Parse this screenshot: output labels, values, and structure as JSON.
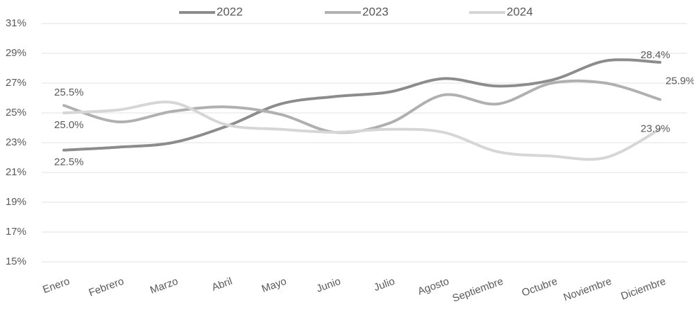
{
  "chart_data": {
    "type": "line",
    "categories": [
      "Enero",
      "Febrero",
      "Marzo",
      "Abril",
      "Mayo",
      "Junio",
      "Julio",
      "Agosto",
      "Septiembre",
      "Octubre",
      "Noviembre",
      "Diciembre"
    ],
    "series": [
      {
        "name": "2022",
        "color": "#8c8c8c",
        "values": [
          22.5,
          22.7,
          23.0,
          24.1,
          25.6,
          26.1,
          26.4,
          27.3,
          26.8,
          27.2,
          28.5,
          28.4
        ],
        "value_labels": [
          "22.5%",
          null,
          null,
          null,
          null,
          null,
          null,
          null,
          null,
          null,
          null,
          "28.4%"
        ]
      },
      {
        "name": "2023",
        "color": "#b0b0b0",
        "values": [
          25.5,
          24.4,
          25.1,
          25.4,
          24.9,
          23.7,
          24.3,
          26.2,
          25.6,
          27.0,
          27.0,
          25.9
        ],
        "value_labels": [
          "25.5%",
          null,
          null,
          null,
          null,
          null,
          null,
          null,
          null,
          null,
          null,
          "25.9%"
        ]
      },
      {
        "name": "2024",
        "color": "#d6d6d6",
        "values": [
          25.0,
          25.2,
          25.7,
          24.2,
          23.9,
          23.7,
          23.9,
          23.7,
          22.4,
          22.1,
          22.0,
          23.9
        ],
        "value_labels": [
          "25.0%",
          null,
          null,
          null,
          null,
          null,
          null,
          null,
          null,
          null,
          null,
          "23.9%"
        ]
      }
    ],
    "ylim": [
      15,
      31
    ],
    "yticks": [
      {
        "value": 15,
        "label": "15%"
      },
      {
        "value": 17,
        "label": "17%"
      },
      {
        "value": 19,
        "label": "19%"
      },
      {
        "value": 21,
        "label": "21%"
      },
      {
        "value": 23,
        "label": "23%"
      },
      {
        "value": 25,
        "label": "25%"
      },
      {
        "value": 27,
        "label": "27%"
      },
      {
        "value": 29,
        "label": "29%"
      },
      {
        "value": 31,
        "label": "31%"
      }
    ],
    "grid": true,
    "smooth": true,
    "legend": "top"
  }
}
